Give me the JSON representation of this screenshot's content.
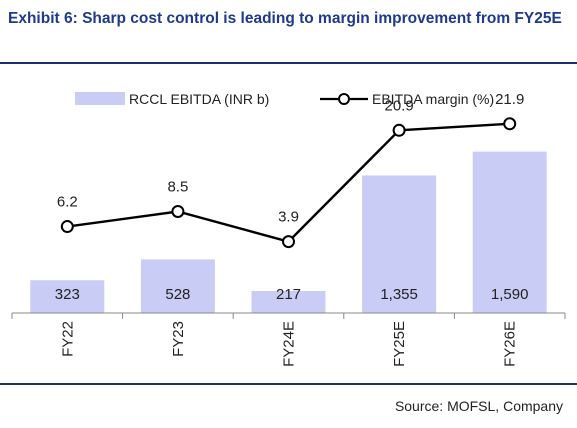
{
  "title": "Exhibit 6: Sharp cost control is leading to margin improvement from FY25E",
  "source": "Source: MOFSL, Company",
  "colors": {
    "title": "#1f3a8a",
    "bar": "#c9ccf5",
    "line": "#000000",
    "rule": "#1f2d6b"
  },
  "chart_data": {
    "type": "bar+line",
    "categories": [
      "FY22",
      "FY23",
      "FY24E",
      "FY25E",
      "FY26E"
    ],
    "series": [
      {
        "name": "RCCL EBITDA (INR b)",
        "type": "bar",
        "axis": "left",
        "values": [
          323,
          528,
          217,
          1355,
          1590
        ],
        "labels": [
          "323",
          "528",
          "217",
          "1,355",
          "1,590"
        ]
      },
      {
        "name": "EBITDA margin (%)",
        "type": "line",
        "axis": "right",
        "marker": "circle",
        "values": [
          6.2,
          8.5,
          3.9,
          20.9,
          21.9
        ],
        "labels": [
          "6.2",
          "8.5",
          "3.9",
          "20.9",
          "21.9"
        ]
      }
    ],
    "ylim_left": [
      0,
      2000
    ],
    "ylim_right": [
      -7,
      24
    ],
    "legend_position": "top",
    "grid": false
  }
}
